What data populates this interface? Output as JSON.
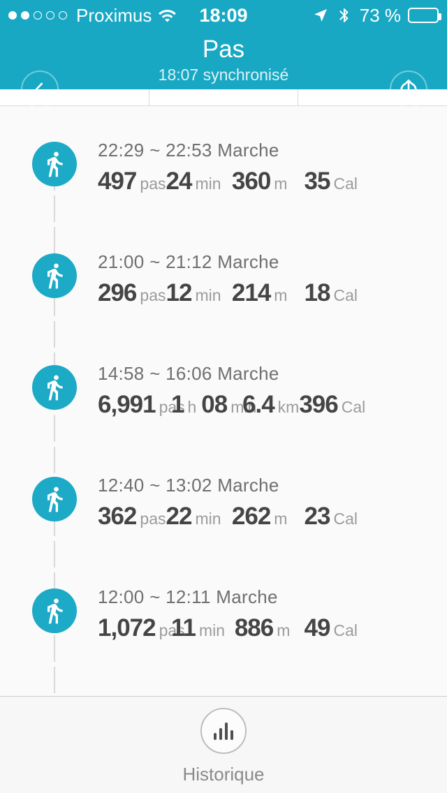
{
  "status_bar": {
    "carrier": "Proximus",
    "time": "18:09",
    "battery_text": "73 %",
    "battery_percent": 73,
    "signal": {
      "filled": 2,
      "total": 5
    }
  },
  "header": {
    "title": "Pas",
    "subtitle": "18:07 synchronisé"
  },
  "activities": [
    {
      "time_range": "22:29 ~ 22:53",
      "type": "Marche",
      "stats": [
        {
          "segments": [
            {
              "text": "497",
              "style": "num"
            },
            {
              "text": "pas",
              "style": "unit"
            }
          ]
        },
        {
          "segments": [
            {
              "text": "24",
              "style": "num"
            },
            {
              "text": "min",
              "style": "unit"
            }
          ]
        },
        {
          "segments": [
            {
              "text": "360",
              "style": "num"
            },
            {
              "text": "m",
              "style": "unit"
            }
          ]
        },
        {
          "segments": [
            {
              "text": "35",
              "style": "num"
            },
            {
              "text": "Cal",
              "style": "unit"
            }
          ]
        }
      ]
    },
    {
      "time_range": "21:00 ~ 21:12",
      "type": "Marche",
      "stats": [
        {
          "segments": [
            {
              "text": "296",
              "style": "num"
            },
            {
              "text": "pas",
              "style": "unit"
            }
          ]
        },
        {
          "segments": [
            {
              "text": "12",
              "style": "num"
            },
            {
              "text": "min",
              "style": "unit"
            }
          ]
        },
        {
          "segments": [
            {
              "text": "214",
              "style": "num"
            },
            {
              "text": "m",
              "style": "unit"
            }
          ]
        },
        {
          "segments": [
            {
              "text": "18",
              "style": "num"
            },
            {
              "text": "Cal",
              "style": "unit"
            }
          ]
        }
      ]
    },
    {
      "time_range": "14:58 ~ 16:06",
      "type": "Marche",
      "stats": [
        {
          "segments": [
            {
              "text": "6,991",
              "style": "num"
            },
            {
              "text": "pas",
              "style": "unit"
            }
          ]
        },
        {
          "segments": [
            {
              "text": "1",
              "style": "num"
            },
            {
              "text": "h",
              "style": "unit"
            },
            {
              "text": "08",
              "style": "num"
            },
            {
              "text": "min",
              "style": "unit"
            }
          ]
        },
        {
          "segments": [
            {
              "text": "6.4",
              "style": "num"
            },
            {
              "text": "km",
              "style": "unit"
            }
          ]
        },
        {
          "segments": [
            {
              "text": "396",
              "style": "num"
            },
            {
              "text": "Cal",
              "style": "unit"
            }
          ]
        }
      ]
    },
    {
      "time_range": "12:40 ~ 13:02",
      "type": "Marche",
      "stats": [
        {
          "segments": [
            {
              "text": "362",
              "style": "num"
            },
            {
              "text": "pas",
              "style": "unit"
            }
          ]
        },
        {
          "segments": [
            {
              "text": "22",
              "style": "num"
            },
            {
              "text": "min",
              "style": "unit"
            }
          ]
        },
        {
          "segments": [
            {
              "text": "262",
              "style": "num"
            },
            {
              "text": "m",
              "style": "unit"
            }
          ]
        },
        {
          "segments": [
            {
              "text": "23",
              "style": "num"
            },
            {
              "text": "Cal",
              "style": "unit"
            }
          ]
        }
      ]
    },
    {
      "time_range": "12:00 ~ 12:11",
      "type": "Marche",
      "stats": [
        {
          "segments": [
            {
              "text": "1,072",
              "style": "num"
            },
            {
              "text": "pas",
              "style": "unit"
            }
          ]
        },
        {
          "segments": [
            {
              "text": "11",
              "style": "num"
            },
            {
              "text": "min",
              "style": "unit"
            }
          ]
        },
        {
          "segments": [
            {
              "text": "886",
              "style": "num"
            },
            {
              "text": "m",
              "style": "unit"
            }
          ]
        },
        {
          "segments": [
            {
              "text": "49",
              "style": "num"
            },
            {
              "text": "Cal",
              "style": "unit"
            }
          ]
        }
      ]
    }
  ],
  "footer": {
    "history_label": "Historique"
  },
  "colors": {
    "teal": "#18a8c4",
    "badge_teal": "#1caac6",
    "number_text": "#454545",
    "unit_text": "#9b9b9b",
    "row_title_text": "#6f6f6f",
    "divider": "#d9d9d9"
  }
}
